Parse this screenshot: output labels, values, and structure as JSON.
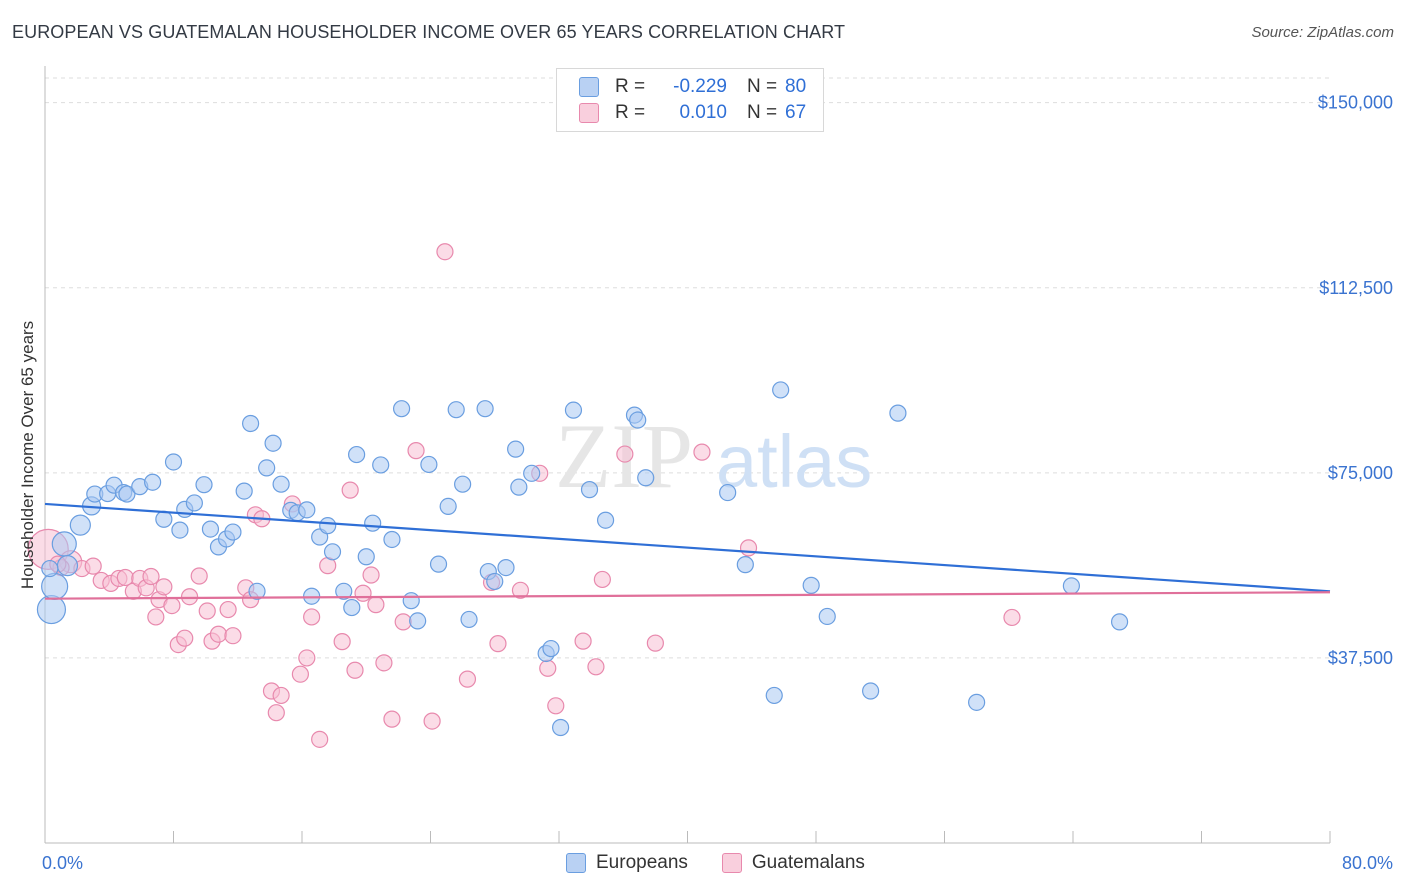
{
  "title": "EUROPEAN VS GUATEMALAN HOUSEHOLDER INCOME OVER 65 YEARS CORRELATION CHART",
  "source": "Source: ZipAtlas.com",
  "watermark": {
    "zip": "ZIP",
    "atlas": "atlas"
  },
  "legend": {
    "rows": [
      {
        "r_label": "R =",
        "r_value": "-0.229",
        "n_label": "N =",
        "n_value": "80"
      },
      {
        "r_label": "R =",
        "r_value": "0.010",
        "n_label": "N =",
        "n_value": "67"
      }
    ],
    "bottom": [
      "Europeans",
      "Guatemalans"
    ]
  },
  "colors": {
    "blue_fill": "#a9c8f2",
    "blue_stroke": "#6a9ee0",
    "blue_line": "#2f6fd6",
    "pink_fill": "#f7bfd3",
    "pink_stroke": "#e889ad",
    "pink_line": "#e0709a",
    "axis_text": "#3a73d0",
    "grid": "#dddddd"
  },
  "chart_data": {
    "type": "scatter",
    "title": "EUROPEAN VS GUATEMALAN HOUSEHOLDER INCOME OVER 65 YEARS CORRELATION CHART",
    "xlabel": "",
    "ylabel": "Householder Income Over 65 years",
    "xlim": [
      0,
      80
    ],
    "ylim": [
      0,
      155000
    ],
    "x_tick_labels": [
      "0.0%",
      "80.0%"
    ],
    "y_ticks": [
      37500,
      75000,
      112500,
      150000
    ],
    "y_tick_labels": [
      "$37,500",
      "$75,000",
      "$112,500",
      "$150,000"
    ],
    "grid": true,
    "series": [
      {
        "name": "Europeans",
        "r": -0.229,
        "n": 80,
        "trend": [
          [
            0,
            68700
          ],
          [
            80,
            51000
          ]
        ],
        "points": [
          [
            0.4,
            47300
          ],
          [
            0.6,
            52000
          ],
          [
            1.2,
            60600
          ],
          [
            1.4,
            56200
          ],
          [
            2.2,
            64400
          ],
          [
            2.9,
            68300
          ],
          [
            3.1,
            70700
          ],
          [
            3.9,
            70800
          ],
          [
            4.3,
            72500
          ],
          [
            4.9,
            71000
          ],
          [
            5.1,
            70700
          ],
          [
            5.9,
            72200
          ],
          [
            6.7,
            73100
          ],
          [
            7.4,
            65600
          ],
          [
            8.0,
            77200
          ],
          [
            8.4,
            63400
          ],
          [
            8.7,
            67600
          ],
          [
            9.3,
            68900
          ],
          [
            9.9,
            72600
          ],
          [
            10.3,
            63600
          ],
          [
            10.8,
            60000
          ],
          [
            11.3,
            61600
          ],
          [
            11.7,
            63000
          ],
          [
            12.4,
            71300
          ],
          [
            12.8,
            85000
          ],
          [
            13.2,
            51000
          ],
          [
            13.8,
            76000
          ],
          [
            14.2,
            81000
          ],
          [
            14.7,
            72700
          ],
          [
            15.3,
            67400
          ],
          [
            15.7,
            66900
          ],
          [
            16.3,
            67500
          ],
          [
            16.6,
            50000
          ],
          [
            17.1,
            62000
          ],
          [
            17.6,
            64300
          ],
          [
            17.9,
            59000
          ],
          [
            18.6,
            51000
          ],
          [
            19.1,
            47700
          ],
          [
            19.4,
            78700
          ],
          [
            20.0,
            58000
          ],
          [
            20.4,
            64800
          ],
          [
            20.9,
            76600
          ],
          [
            21.6,
            61500
          ],
          [
            22.2,
            88000
          ],
          [
            22.8,
            49100
          ],
          [
            23.2,
            45000
          ],
          [
            23.9,
            76700
          ],
          [
            24.5,
            56500
          ],
          [
            25.1,
            68200
          ],
          [
            25.6,
            87800
          ],
          [
            26.0,
            72700
          ],
          [
            26.4,
            45300
          ],
          [
            27.4,
            88000
          ],
          [
            27.6,
            55000
          ],
          [
            28.0,
            53000
          ],
          [
            28.7,
            55800
          ],
          [
            29.3,
            79800
          ],
          [
            29.5,
            72100
          ],
          [
            30.3,
            74900
          ],
          [
            31.2,
            38400
          ],
          [
            31.5,
            39400
          ],
          [
            32.1,
            23400
          ],
          [
            32.9,
            87700
          ],
          [
            33.9,
            71600
          ],
          [
            34.9,
            65400
          ],
          [
            36.7,
            86700
          ],
          [
            36.9,
            85700
          ],
          [
            37.4,
            74000
          ],
          [
            42.5,
            71000
          ],
          [
            43.6,
            56400
          ],
          [
            45.4,
            29900
          ],
          [
            45.8,
            91800
          ],
          [
            47.7,
            52200
          ],
          [
            48.7,
            45900
          ],
          [
            51.4,
            30800
          ],
          [
            53.1,
            87100
          ],
          [
            58.0,
            28500
          ],
          [
            63.9,
            52100
          ],
          [
            66.9,
            44800
          ],
          [
            0.3,
            55600
          ]
        ],
        "sizes": [
          28,
          26,
          24,
          20,
          20,
          18,
          16,
          16,
          16,
          16,
          16,
          16,
          16,
          16,
          16,
          16,
          16,
          16,
          16,
          16,
          16,
          16,
          16,
          16,
          16,
          16,
          16,
          16,
          16,
          16,
          16,
          16,
          16,
          16,
          16,
          16,
          16,
          16,
          16,
          16,
          16,
          16,
          16,
          16,
          16,
          16,
          16,
          16,
          16,
          16,
          16,
          16,
          16,
          16,
          16,
          16,
          16,
          16,
          16,
          16,
          16,
          16,
          16,
          16,
          16,
          16,
          16,
          16,
          16,
          16,
          16,
          16,
          16,
          16,
          16,
          16,
          16,
          16,
          16,
          16
        ]
      },
      {
        "name": "Guatemalans",
        "r": 0.01,
        "n": 67,
        "trend": [
          [
            0,
            49500
          ],
          [
            80,
            50800
          ]
        ],
        "points": [
          [
            0.2,
            59500
          ],
          [
            1.6,
            57000
          ],
          [
            2.3,
            55600
          ],
          [
            3.0,
            56100
          ],
          [
            3.5,
            53200
          ],
          [
            4.1,
            52600
          ],
          [
            4.6,
            53600
          ],
          [
            5.0,
            53800
          ],
          [
            5.5,
            51000
          ],
          [
            5.9,
            53600
          ],
          [
            6.3,
            51700
          ],
          [
            6.6,
            54000
          ],
          [
            6.9,
            45800
          ],
          [
            7.1,
            49300
          ],
          [
            7.4,
            51900
          ],
          [
            7.9,
            48100
          ],
          [
            8.3,
            40200
          ],
          [
            8.7,
            41500
          ],
          [
            9.0,
            49900
          ],
          [
            9.6,
            54100
          ],
          [
            10.1,
            47000
          ],
          [
            10.4,
            40900
          ],
          [
            10.8,
            42300
          ],
          [
            11.4,
            47300
          ],
          [
            11.7,
            42000
          ],
          [
            12.5,
            51700
          ],
          [
            12.8,
            49300
          ],
          [
            13.1,
            66500
          ],
          [
            13.5,
            65700
          ],
          [
            14.1,
            30800
          ],
          [
            14.4,
            26400
          ],
          [
            14.7,
            29900
          ],
          [
            15.4,
            68700
          ],
          [
            15.9,
            34200
          ],
          [
            16.3,
            37500
          ],
          [
            16.6,
            45800
          ],
          [
            17.1,
            21000
          ],
          [
            17.6,
            56200
          ],
          [
            18.5,
            40800
          ],
          [
            19.0,
            71500
          ],
          [
            19.3,
            35000
          ],
          [
            19.8,
            50600
          ],
          [
            20.3,
            54300
          ],
          [
            20.6,
            48300
          ],
          [
            21.1,
            36500
          ],
          [
            21.6,
            25100
          ],
          [
            22.3,
            44800
          ],
          [
            23.1,
            79500
          ],
          [
            24.1,
            24700
          ],
          [
            24.9,
            119800
          ],
          [
            26.3,
            33200
          ],
          [
            27.8,
            52800
          ],
          [
            28.2,
            40400
          ],
          [
            29.6,
            51200
          ],
          [
            30.8,
            74900
          ],
          [
            31.3,
            35400
          ],
          [
            31.8,
            27800
          ],
          [
            33.5,
            40900
          ],
          [
            34.3,
            35700
          ],
          [
            34.7,
            53400
          ],
          [
            36.1,
            78800
          ],
          [
            38.0,
            40500
          ],
          [
            40.9,
            79200
          ],
          [
            43.8,
            59800
          ],
          [
            60.2,
            45700
          ],
          [
            1.0,
            55800
          ],
          [
            0.8,
            56500
          ]
        ],
        "sizes": [
          40,
          22,
          16,
          16,
          16,
          16,
          16,
          16,
          16,
          16,
          16,
          16,
          16,
          16,
          16,
          16,
          16,
          16,
          16,
          16,
          16,
          16,
          16,
          16,
          16,
          16,
          16,
          16,
          16,
          16,
          16,
          16,
          16,
          16,
          16,
          16,
          16,
          16,
          16,
          16,
          16,
          16,
          16,
          16,
          16,
          16,
          16,
          16,
          16,
          16,
          16,
          16,
          16,
          16,
          16,
          16,
          16,
          16,
          16,
          16,
          16,
          16,
          16,
          16,
          16,
          16,
          16
        ]
      }
    ]
  }
}
